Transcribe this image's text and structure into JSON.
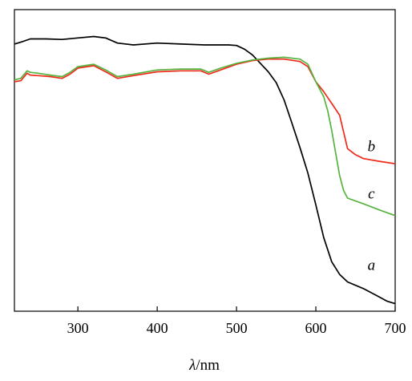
{
  "chart_data": {
    "type": "line",
    "title": "",
    "xlabel_var": "λ",
    "xlabel_unit": "/nm",
    "ylabel": "",
    "xlim": [
      220,
      700
    ],
    "ylim": [
      0,
      1
    ],
    "x_ticks": [
      300,
      400,
      500,
      600,
      700
    ],
    "y_ticks_labeled": false,
    "grid": false,
    "legend": "none",
    "series": [
      {
        "name": "a",
        "color": "#000000",
        "x": [
          220,
          230,
          240,
          260,
          280,
          300,
          320,
          335,
          350,
          370,
          400,
          430,
          460,
          490,
          500,
          510,
          520,
          530,
          540,
          550,
          560,
          570,
          580,
          590,
          600,
          610,
          620,
          630,
          640,
          660,
          680,
          690,
          700
        ],
        "y": [
          0.886,
          0.894,
          0.903,
          0.903,
          0.901,
          0.906,
          0.911,
          0.906,
          0.889,
          0.883,
          0.889,
          0.886,
          0.883,
          0.883,
          0.881,
          0.869,
          0.85,
          0.822,
          0.794,
          0.758,
          0.7,
          0.622,
          0.542,
          0.458,
          0.353,
          0.244,
          0.164,
          0.122,
          0.097,
          0.075,
          0.047,
          0.033,
          0.025
        ]
      },
      {
        "name": "b",
        "color": "#ee2a1b",
        "x": [
          220,
          228,
          236,
          240,
          250,
          265,
          280,
          290,
          300,
          320,
          335,
          350,
          370,
          400,
          430,
          455,
          465,
          480,
          500,
          520,
          540,
          560,
          580,
          590,
          600,
          610,
          620,
          630,
          640,
          650,
          660,
          680,
          700
        ],
        "y": [
          0.761,
          0.764,
          0.789,
          0.783,
          0.781,
          0.778,
          0.772,
          0.786,
          0.806,
          0.814,
          0.794,
          0.772,
          0.781,
          0.794,
          0.797,
          0.797,
          0.786,
          0.8,
          0.819,
          0.831,
          0.836,
          0.836,
          0.828,
          0.811,
          0.761,
          0.728,
          0.689,
          0.65,
          0.539,
          0.519,
          0.506,
          0.497,
          0.489
        ]
      },
      {
        "name": "c",
        "color": "#57b33e",
        "x": [
          220,
          228,
          236,
          240,
          250,
          265,
          280,
          290,
          300,
          320,
          335,
          350,
          370,
          400,
          430,
          455,
          465,
          480,
          500,
          520,
          540,
          560,
          580,
          590,
          600,
          610,
          615,
          620,
          630,
          635,
          640,
          660,
          680,
          700
        ],
        "y": [
          0.767,
          0.772,
          0.797,
          0.792,
          0.789,
          0.783,
          0.778,
          0.792,
          0.811,
          0.819,
          0.8,
          0.778,
          0.786,
          0.8,
          0.803,
          0.803,
          0.792,
          0.806,
          0.822,
          0.833,
          0.839,
          0.842,
          0.836,
          0.819,
          0.761,
          0.711,
          0.664,
          0.6,
          0.45,
          0.4,
          0.375,
          0.356,
          0.336,
          0.317
        ]
      }
    ],
    "annotations": [
      {
        "text": "a",
        "x": 670,
        "y": 0.153
      },
      {
        "text": "b",
        "x": 670,
        "y": 0.547
      },
      {
        "text": "c",
        "x": 670,
        "y": 0.389
      }
    ]
  }
}
